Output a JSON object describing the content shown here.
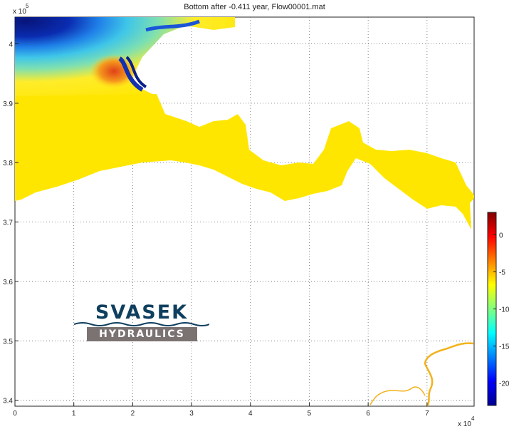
{
  "title": "Bottom after -0.411 year, Flow00001.mat",
  "logo": {
    "top_text": "SVASEK",
    "bottom_text": "HYDRAULICS"
  },
  "chart_data": {
    "type": "heatmap",
    "title": "Bottom after -0.411 year, Flow00001.mat",
    "xlim": [
      0,
      78000
    ],
    "ylim": [
      339000,
      404500
    ],
    "x_ticks": [
      0,
      1,
      2,
      3,
      4,
      5,
      6,
      7
    ],
    "x_exponent_label": "x 10",
    "x_exponent": "4",
    "y_ticks": [
      3.4,
      3.5,
      3.6,
      3.7,
      3.8,
      3.9,
      4
    ],
    "y_exponent_label": "x 10",
    "y_exponent": "5",
    "grid": true,
    "colorbar": {
      "ticks": [
        0,
        -5,
        -10,
        -15,
        -20
      ],
      "range": [
        -23,
        3
      ],
      "colormap": [
        "#00008f",
        "#0000ff",
        "#0080ff",
        "#00ffff",
        "#80ff80",
        "#ffff00",
        "#ff8000",
        "#ff0000",
        "#800000"
      ]
    },
    "dominant_value": -7.5,
    "colors": {
      "estuary": "#ffe600",
      "river": "#f2b21c",
      "deep": "#0a1f88",
      "shoal": "#e8501a"
    }
  }
}
